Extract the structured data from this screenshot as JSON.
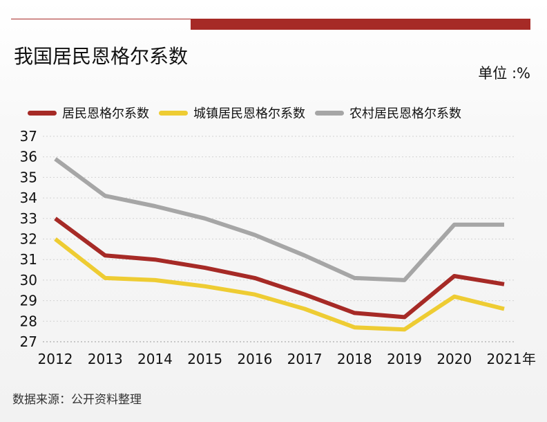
{
  "header": {
    "title": "我国居民恩格尔系数",
    "unit": "单位 :%"
  },
  "colors": {
    "accent": "#a62a26",
    "resident": "#a62a26",
    "urban": "#eecc33",
    "rural": "#a6a6a6"
  },
  "chart_data": {
    "type": "line",
    "title": "我国居民恩格尔系数",
    "unit": "单位 :%",
    "x": [
      "2012",
      "2013",
      "2014",
      "2015",
      "2016",
      "2017",
      "2018",
      "2019",
      "2020",
      "2021"
    ],
    "x_unit": "年",
    "ylim": [
      27,
      37
    ],
    "yticks": [
      27,
      28,
      29,
      30,
      31,
      32,
      33,
      34,
      35,
      36,
      37
    ],
    "grid": true,
    "legend": "top-left",
    "series": [
      {
        "name": "居民恩格尔系数",
        "color": "#a62a26",
        "values": [
          33.0,
          31.2,
          31.0,
          30.6,
          30.1,
          29.3,
          28.4,
          28.2,
          30.2,
          29.8
        ]
      },
      {
        "name": "城镇居民恩格尔系数",
        "color": "#eecc33",
        "values": [
          32.0,
          30.1,
          30.0,
          29.7,
          29.3,
          28.6,
          27.7,
          27.6,
          29.2,
          28.6
        ]
      },
      {
        "name": "农村居民恩格尔系数",
        "color": "#a6a6a6",
        "values": [
          35.9,
          34.1,
          33.6,
          33.0,
          32.2,
          31.2,
          30.1,
          30.0,
          32.7,
          32.7
        ]
      }
    ]
  },
  "footer": {
    "source": "数据来源：公开资料整理"
  }
}
